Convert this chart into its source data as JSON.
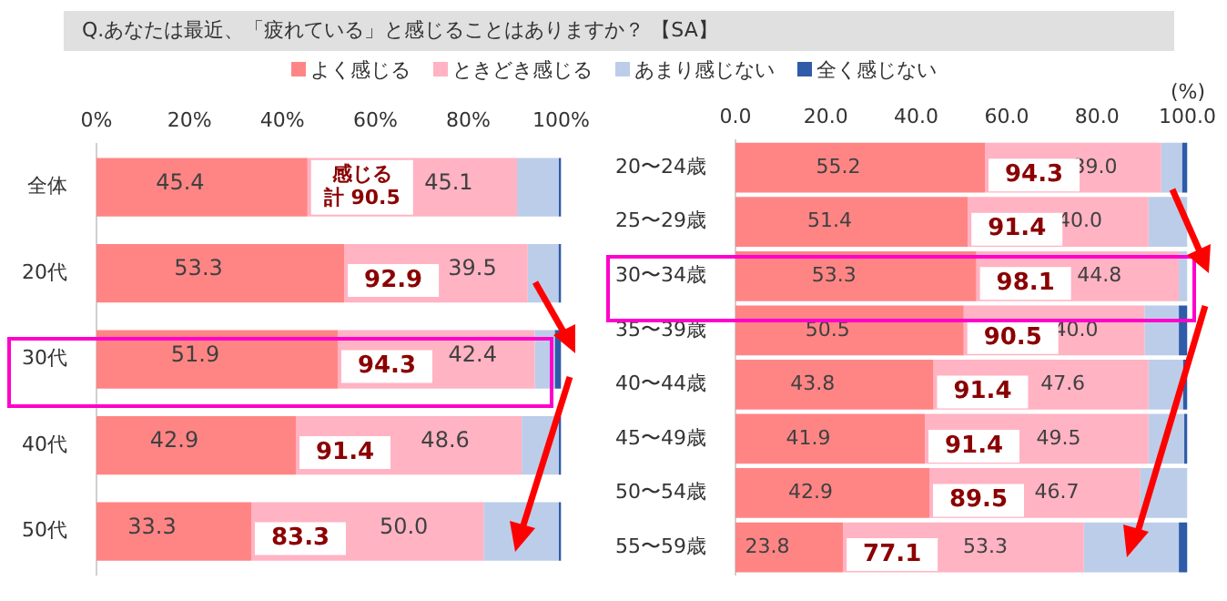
{
  "chart_data": [
    {
      "type": "bar",
      "orientation": "horizontal",
      "stacked": true,
      "title": "Q.あなたは最近、「疲れている」と感じることはありますか？ 【SA】",
      "legend": "top",
      "grid": false,
      "categories": [
        "全体",
        "20代",
        "30代",
        "40代",
        "50代"
      ],
      "xlim": [
        0,
        100
      ],
      "xticks": [
        {
          "value": 0,
          "label": "0%"
        },
        {
          "value": 20,
          "label": "20%"
        },
        {
          "value": 40,
          "label": "40%"
        },
        {
          "value": 60,
          "label": "60%"
        },
        {
          "value": 80,
          "label": "80%"
        },
        {
          "value": 100,
          "label": "100%"
        }
      ],
      "series": [
        {
          "name": "よく感じる",
          "color": "#ff8585",
          "values": [
            45.4,
            53.3,
            51.9,
            42.9,
            33.3
          ],
          "value_labels": [
            "45.4",
            "53.3",
            "51.9",
            "42.9",
            "33.3"
          ]
        },
        {
          "name": "ときどき感じる",
          "color": "#ffb3c3",
          "values": [
            45.1,
            39.5,
            42.4,
            48.6,
            50.0
          ],
          "value_labels": [
            "45.1",
            "39.5",
            "42.4",
            "48.6",
            "50.0"
          ]
        },
        {
          "name": "あまり感じない",
          "color": "#bccde9",
          "values": [
            9.0,
            6.6,
            4.3,
            8.0,
            16.2
          ]
        },
        {
          "name": "全く感じない",
          "color": "#2f5ba8",
          "values": [
            0.5,
            0.6,
            1.4,
            0.5,
            0.5
          ]
        }
      ],
      "annotations": [
        {
          "text": "感じる計 90.5",
          "x": 45.4,
          "y": "全体"
        },
        {
          "text": "92.9",
          "x": 53.3,
          "y": "20代"
        },
        {
          "text": "94.3",
          "x": 51.9,
          "y": "30代"
        },
        {
          "text": "91.4",
          "x": 42.9,
          "y": "40代"
        },
        {
          "text": "83.3",
          "x": 33.3,
          "y": "50代"
        }
      ]
    },
    {
      "type": "bar",
      "orientation": "horizontal",
      "stacked": true,
      "grid": false,
      "categories": [
        "20〜24歳",
        "25〜29歳",
        "30〜34歳",
        "35〜39歳",
        "40〜44歳",
        "45〜49歳",
        "50〜54歳",
        "55〜59歳"
      ],
      "xlim": [
        0,
        100
      ],
      "xticks": [
        {
          "value": 0,
          "label": "0.0"
        },
        {
          "value": 20,
          "label": "20.0"
        },
        {
          "value": 40,
          "label": "40.0"
        },
        {
          "value": 60,
          "label": "60.0"
        },
        {
          "value": 80,
          "label": "80.0"
        },
        {
          "value": 100,
          "label": "100.0"
        }
      ],
      "series": [
        {
          "color": "#ff8585",
          "values": [
            55.2,
            51.4,
            53.3,
            50.5,
            43.8,
            41.9,
            42.9,
            23.8
          ],
          "value_labels": [
            "55.2",
            "51.4",
            "53.3",
            "50.5",
            "43.8",
            "41.9",
            "42.9",
            "23.8"
          ]
        },
        {
          "color": "#ffb3c3",
          "values": [
            39.0,
            40.0,
            44.8,
            40.0,
            47.6,
            49.5,
            46.7,
            53.3
          ],
          "value_labels": [
            "39.0",
            "40.0",
            "44.8",
            "40.0",
            "47.6",
            "49.5",
            "46.7",
            "53.3"
          ]
        },
        {
          "color": "#bccde9",
          "values": [
            4.6,
            8.6,
            1.9,
            7.6,
            7.6,
            7.9,
            10.4,
            21.0
          ]
        },
        {
          "color": "#2f5ba8",
          "values": [
            1.2,
            0,
            0,
            1.9,
            1.0,
            0.7,
            0,
            1.9
          ]
        }
      ],
      "annotations": [
        "(%)",
        {
          "text": "94.3",
          "x": 55.2,
          "y": "20〜24歳"
        },
        {
          "text": "91.4",
          "x": 51.4,
          "y": "25〜29歳"
        },
        {
          "text": "98.1",
          "x": 53.3,
          "y": "30〜34歳"
        },
        {
          "text": "90.5",
          "x": 50.5,
          "y": "35〜39歳"
        },
        {
          "text": "91.4",
          "x": 43.8,
          "y": "40〜44歳"
        },
        {
          "text": "91.4",
          "x": 41.9,
          "y": "45〜49歳"
        },
        {
          "text": "89.5",
          "x": 42.9,
          "y": "50〜54歳"
        },
        {
          "text": "77.1",
          "x": 23.8,
          "y": "55〜59歳"
        }
      ]
    }
  ]
}
